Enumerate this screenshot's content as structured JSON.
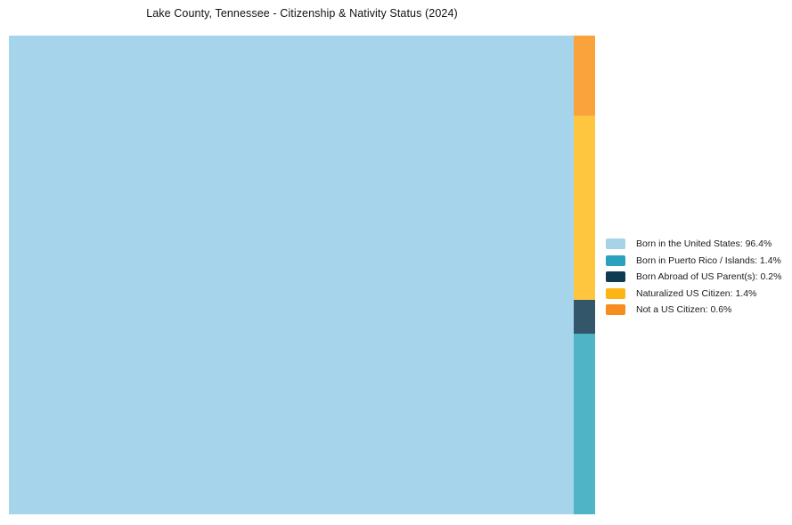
{
  "title": "Lake County, Tennessee - Citizenship & Nativity Status (2024)",
  "chart_data": {
    "type": "treemap",
    "title": "Lake County, Tennessee - Citizenship & Nativity Status (2024)",
    "unit": "percent",
    "legend_position": "right",
    "series": [
      {
        "name": "Born in the United States",
        "value": 96.4,
        "color": "#A6D3E8"
      },
      {
        "name": "Born in Puerto Rico / Islands",
        "value": 1.4,
        "color": "#2CA1BE"
      },
      {
        "name": "Born Abroad of US Parent(s)",
        "value": 0.2,
        "color": "#0E3A52"
      },
      {
        "name": "Naturalized US Citizen",
        "value": 1.4,
        "color": "#FDB515"
      },
      {
        "name": "Not a US Citizen",
        "value": 0.6,
        "color": "#F68D1E"
      }
    ]
  },
  "treemap": {
    "main": {
      "name": "Born in the United States",
      "fill": "#A6D4EB"
    },
    "column": [
      {
        "name": "Not a US Citizen",
        "fill": "#FAA23C"
      },
      {
        "name": "Naturalized US Citizen",
        "fill": "#FDC63E"
      },
      {
        "name": "Born Abroad of US Parent(s)",
        "fill": "#33566B"
      },
      {
        "name": "Born in Puerto Rico / Islands",
        "fill": "#4EB4C6"
      }
    ]
  },
  "legend": {
    "items": [
      {
        "label": "Born in the United States: 96.4%",
        "color": "#A6D3E8"
      },
      {
        "label": "Born in Puerto Rico / Islands: 1.4%",
        "color": "#2CA1BE"
      },
      {
        "label": "Born Abroad of US Parent(s): 0.2%",
        "color": "#0E3A52"
      },
      {
        "label": "Naturalized US Citizen: 1.4%",
        "color": "#FDB515"
      },
      {
        "label": "Not a US Citizen: 0.6%",
        "color": "#F68D1E"
      }
    ]
  }
}
